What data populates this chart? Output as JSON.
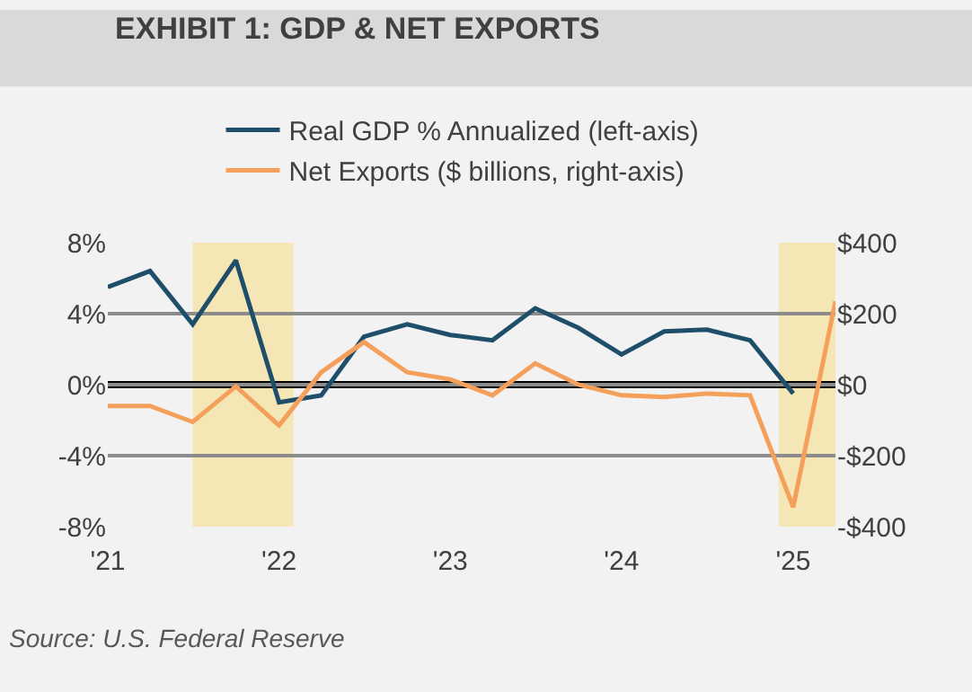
{
  "chart_data": {
    "type": "line",
    "title": "EXHIBIT 1: GDP & NET EXPORTS",
    "x": [
      "2021-01",
      "2021-04",
      "2021-07",
      "2021-10",
      "2022-01",
      "2022-04",
      "2022-07",
      "2022-10",
      "2023-01",
      "2023-04",
      "2023-07",
      "2023-10",
      "2024-01",
      "2024-04",
      "2024-07",
      "2024-10",
      "2025-01",
      "2025-04"
    ],
    "series": [
      {
        "name": "Real GDP % Annualized (left-axis)",
        "color": "#1f4e6b",
        "values": [
          5.5,
          6.4,
          3.4,
          7.0,
          -1.0,
          -0.6,
          2.7,
          3.4,
          2.8,
          2.5,
          4.3,
          3.2,
          1.7,
          3.0,
          3.1,
          2.5,
          -0.5,
          null
        ]
      },
      {
        "name": "Net Exports ($ billions, right-axis)",
        "color": "#f4a05a",
        "axis": "y2",
        "values": [
          -60,
          -60,
          -105,
          -5,
          -115,
          35,
          120,
          35,
          15,
          -30,
          60,
          0,
          -30,
          -35,
          -25,
          -30,
          -345,
          235
        ]
      }
    ],
    "xlim": [
      "2021-01",
      "2025-04"
    ],
    "xticks": [
      {
        "value": "2021-01",
        "label": "'21"
      },
      {
        "value": "2022-01",
        "label": "'22"
      },
      {
        "value": "2023-01",
        "label": "'23"
      },
      {
        "value": "2024-01",
        "label": "'24"
      },
      {
        "value": "2025-01",
        "label": "'25"
      }
    ],
    "ylim": [
      -8,
      8
    ],
    "yticks": [
      {
        "value": -8,
        "label": "-8%"
      },
      {
        "value": -4,
        "label": "-4%"
      },
      {
        "value": 0,
        "label": "0%"
      },
      {
        "value": 4,
        "label": "4%"
      },
      {
        "value": 8,
        "label": "8%"
      }
    ],
    "y2lim": [
      -400,
      400
    ],
    "y2ticks": [
      {
        "value": -400,
        "label": "-$400"
      },
      {
        "value": -200,
        "label": "-$200"
      },
      {
        "value": 0,
        "label": "$0"
      },
      {
        "value": 200,
        "label": "$200"
      },
      {
        "value": 400,
        "label": "$400"
      }
    ],
    "ref_lines": [
      {
        "axis": "y",
        "value": 0,
        "color": "#000000"
      }
    ],
    "bands": [
      {
        "axis": "x",
        "from": "2021-07",
        "to": "2022-02",
        "color": "#f6e08c"
      },
      {
        "axis": "x",
        "from": "2024-12",
        "to": "2025-04",
        "color": "#f6e08c"
      }
    ],
    "grid": "y",
    "legend": "top",
    "marker": "none",
    "line_style": "solid",
    "annotations": [
      "Source: U.S. Federal Reserve"
    ]
  }
}
